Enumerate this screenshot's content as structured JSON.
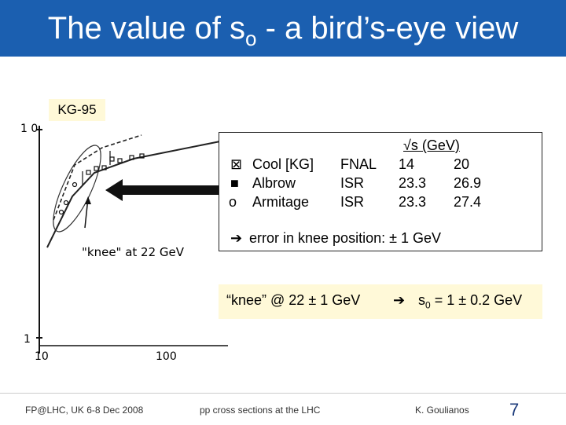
{
  "slide": {
    "title_pre": "The value of s",
    "title_sub": "o",
    "title_post": " -  a bird’s-eye view",
    "kg_label": "KG-95"
  },
  "plot": {
    "y_top_label": "1 0",
    "y_bottom_label": "1",
    "x_left_label": "10",
    "x_right_label": "100",
    "knee_caption": "\"knee\"  at 22 GeV"
  },
  "legend": {
    "header": "√s (GeV)",
    "rows": [
      {
        "symbol": "⊠",
        "name": "Cool [KG]",
        "lab": "FNAL",
        "e1": "14",
        "e2": "20"
      },
      {
        "symbol": "■",
        "name": "Albrow",
        "lab": "ISR",
        "e1": "23.3",
        "e2": "26.9"
      },
      {
        "symbol": "o",
        "name": "Armitage",
        "lab": "ISR",
        "e1": "23.3",
        "e2": "27.4"
      }
    ],
    "error_note": "error in knee position: ± 1 GeV"
  },
  "knee_result": {
    "left": "“knee” @ 22 ± 1 GeV",
    "right_pre": "s",
    "right_sub": "0",
    "right_post": " = 1 ± 0.2 GeV"
  },
  "footer": {
    "left": "FP@LHC, UK 6-8 Dec 2008",
    "center": "pp cross sections at the LHC",
    "right": "K. Goulianos",
    "page": "7"
  },
  "colors": {
    "title_bar": "#1b5fb0",
    "highlight": "#fff9d8"
  }
}
